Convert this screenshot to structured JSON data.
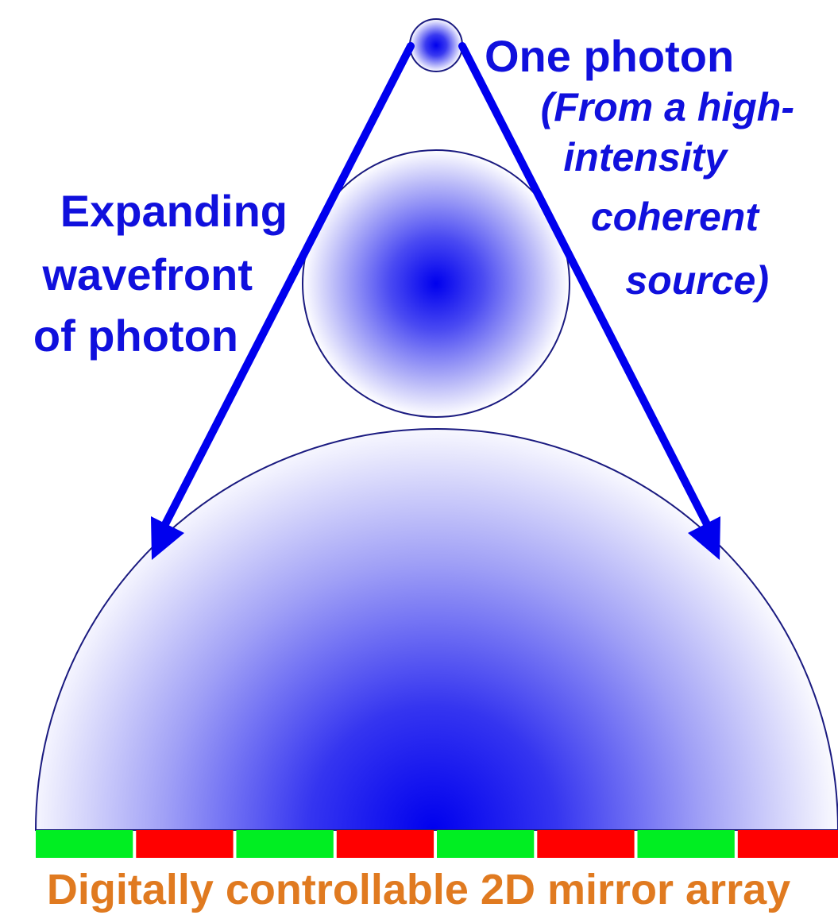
{
  "labels": {
    "photon_title": "One photon",
    "photon_source_lines": [
      "(From a high-",
      "intensity",
      "coherent",
      "source)"
    ],
    "wavefront_lines": [
      "Expanding",
      "wavefront",
      "of photon"
    ],
    "mirror_array": "Digitally controllable 2D mirror array"
  },
  "mirror_array": {
    "segments": [
      "green",
      "red",
      "green",
      "red",
      "green",
      "red",
      "green",
      "red"
    ]
  },
  "colors": {
    "blue": "#0000ee",
    "label_blue": "#1010dd",
    "orange": "#e07a20",
    "green": "#00ee22",
    "red": "#ff0000",
    "outline": "#1a1a80"
  }
}
